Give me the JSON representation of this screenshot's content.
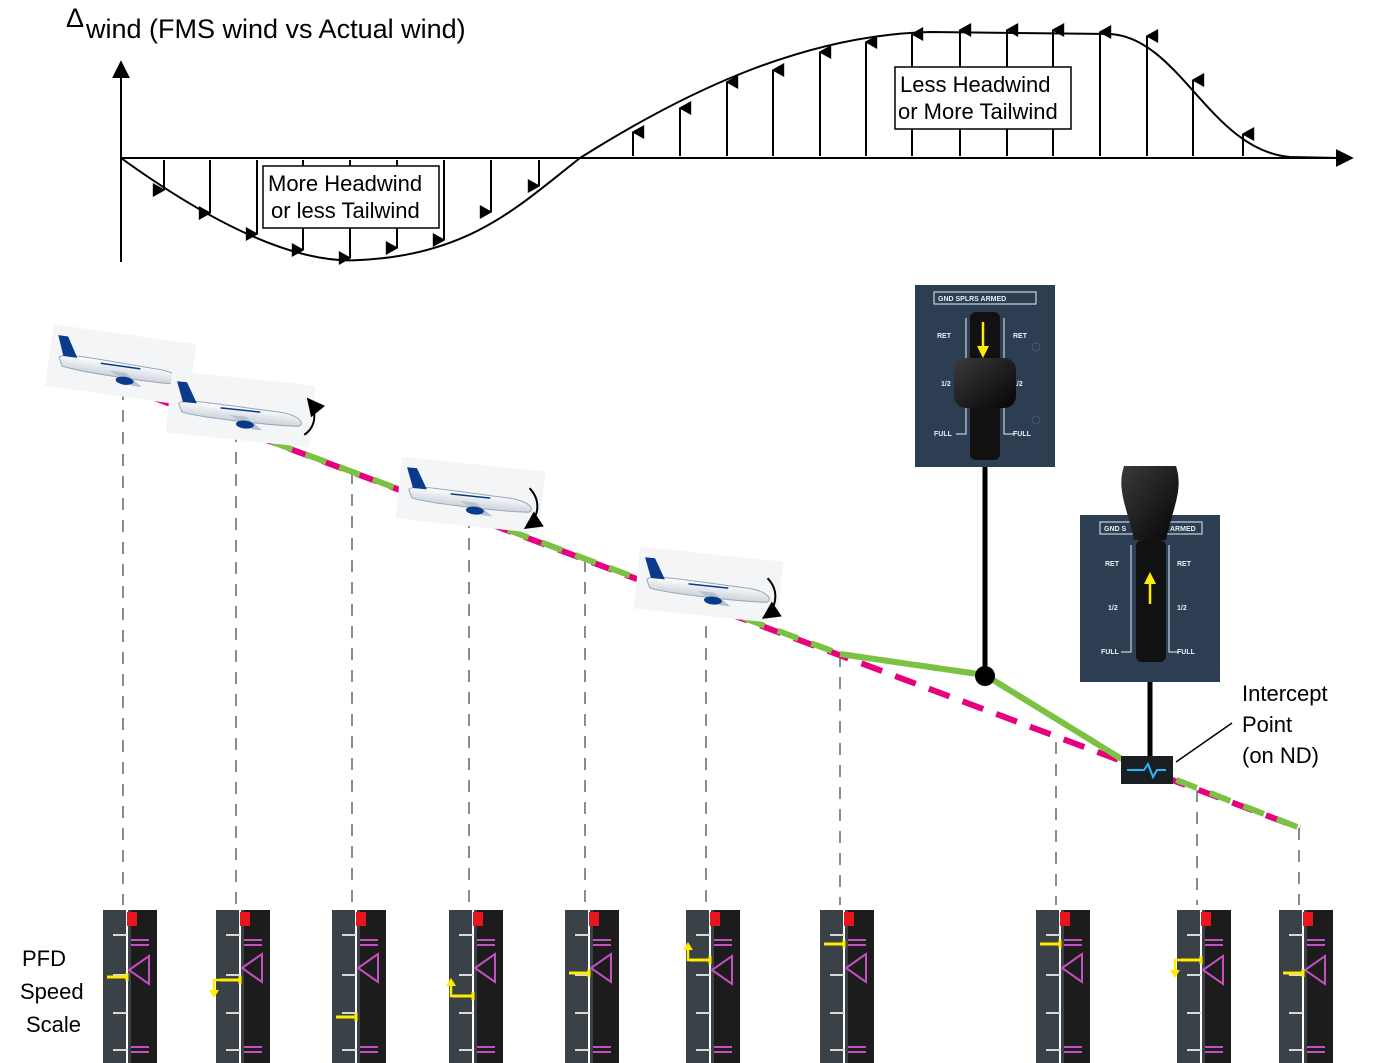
{
  "chart": {
    "delta_symbol": "Δ",
    "title": "wind (FMS wind vs Actual wind)",
    "negative_box": [
      "More Headwind",
      "or less Tailwind"
    ],
    "positive_box": [
      "Less Headwind",
      "or More Tailwind"
    ]
  },
  "spoiler_panel": {
    "header": "GND SPLRS ARMED",
    "header_partial": [
      "GND S",
      "ARMED"
    ],
    "ret": "RET",
    "half": "1/2",
    "full": "FULL"
  },
  "intercept": [
    "Intercept",
    "Point",
    "(on ND)"
  ],
  "pfd_label": [
    "PFD",
    "Speed",
    "Scale"
  ],
  "colors": {
    "green_path": "#7cc242",
    "magenta_path": "#e6007e",
    "panel": "#2d3e52",
    "speed_yellow": "#ffec00",
    "speed_magenta": "#c44fc0",
    "speed_red": "#e8141e",
    "intercept_cyan": "#29b6f6"
  },
  "pfd_scales": [
    {
      "yellow": "bar",
      "arrow": "none"
    },
    {
      "yellow": "bar",
      "arrow": "down"
    },
    {
      "yellow": "bar",
      "arrow": "none"
    },
    {
      "yellow": "bar",
      "arrow": "up"
    },
    {
      "yellow": "bar",
      "arrow": "none"
    },
    {
      "yellow": "bar",
      "arrow": "up"
    },
    {
      "yellow": "bar",
      "arrow": "none"
    },
    {
      "yellow": "bar",
      "arrow": "none"
    },
    {
      "yellow": "bar",
      "arrow": "down"
    },
    {
      "yellow": "bar",
      "arrow": "none"
    }
  ]
}
